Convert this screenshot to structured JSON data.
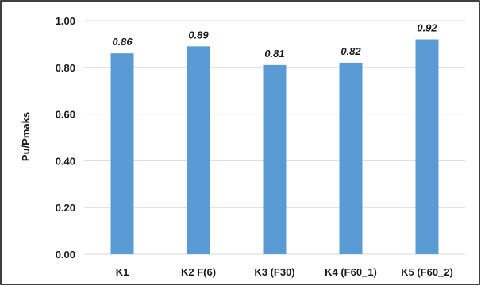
{
  "chart_data": {
    "type": "bar",
    "categories": [
      "K1",
      "K2 F(6)",
      "K3 (F30)",
      "K4 (F60_1)",
      "K5 (F60_2)"
    ],
    "values": [
      0.86,
      0.89,
      0.81,
      0.82,
      0.92
    ],
    "data_labels": [
      "0.86",
      "0.89",
      "0.81",
      "0.82",
      "0.92"
    ],
    "title": "",
    "xlabel": "",
    "ylabel": "Pu/Pmaks",
    "ylim": [
      0,
      1.0
    ],
    "yticks": [
      "0.00",
      "0.20",
      "0.40",
      "0.60",
      "0.80",
      "1.00"
    ],
    "ytick_values": [
      0,
      0.2,
      0.4,
      0.6,
      0.8,
      1.0
    ],
    "grid": true,
    "legend": "none",
    "colors": {
      "bar": "#5b9bd5",
      "grid": "#d9d9d9",
      "border": "#000000"
    }
  }
}
